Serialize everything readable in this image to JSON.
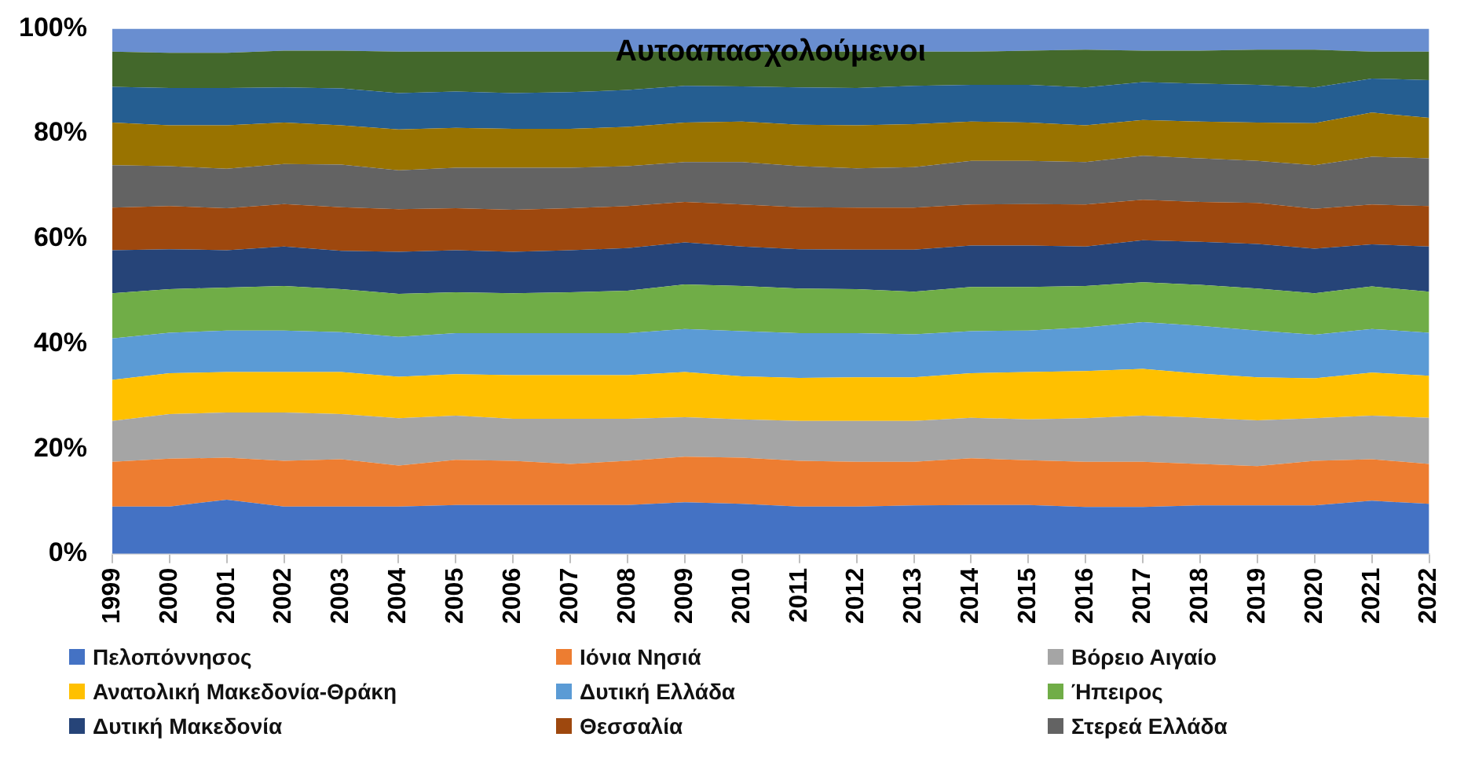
{
  "chart_data": {
    "type": "area",
    "stacked": true,
    "title": "Αυτοαπασχολούμενοι",
    "categories": [
      "1999",
      "2000",
      "2001",
      "2002",
      "2003",
      "2004",
      "2005",
      "2006",
      "2007",
      "2008",
      "2009",
      "2010",
      "2011",
      "2012",
      "2013",
      "2014",
      "2015",
      "2016",
      "2017",
      "2018",
      "2019",
      "2020",
      "2021",
      "2022"
    ],
    "ylim": [
      0,
      100
    ],
    "yticks": [
      {
        "value": 0,
        "label": "0%"
      },
      {
        "value": 20,
        "label": "20%"
      },
      {
        "value": 40,
        "label": "40%"
      },
      {
        "value": 60,
        "label": "60%"
      },
      {
        "value": 80,
        "label": "80%"
      },
      {
        "value": 100,
        "label": "100%"
      }
    ],
    "grid": false,
    "legend": "bottom",
    "series": [
      {
        "name": "Πελοπόννησος",
        "color": "#4472c4",
        "values": [
          9.0,
          9.0,
          10.3,
          9.0,
          9.0,
          9.0,
          9.3,
          9.3,
          9.3,
          9.3,
          9.8,
          9.5,
          9.0,
          9.0,
          9.2,
          9.3,
          9.3,
          8.9,
          8.9,
          9.2,
          9.2,
          9.2,
          10.1,
          9.5
        ]
      },
      {
        "name": "Ιόνια Νησιά",
        "color": "#ed7d31",
        "values": [
          8.5,
          9.1,
          8.0,
          8.7,
          9.0,
          7.8,
          8.6,
          8.4,
          7.8,
          8.4,
          8.7,
          8.8,
          8.7,
          8.5,
          8.3,
          8.9,
          8.5,
          8.6,
          8.6,
          7.9,
          7.5,
          8.5,
          7.9,
          7.6
        ]
      },
      {
        "name": "Βόρειο Αιγαίο",
        "color": "#a5a5a5",
        "values": [
          7.8,
          8.5,
          8.6,
          9.2,
          8.6,
          9.0,
          8.4,
          8.0,
          8.6,
          8.0,
          7.5,
          7.3,
          7.6,
          7.8,
          7.8,
          7.7,
          7.8,
          8.3,
          8.8,
          8.8,
          8.7,
          8.1,
          8.3,
          8.8
        ]
      },
      {
        "name": "Ανατολική Μακεδονία-Θράκη",
        "color": "#ffc000",
        "values": [
          7.8,
          7.8,
          7.7,
          7.7,
          8.0,
          7.9,
          7.9,
          8.3,
          8.3,
          8.3,
          8.6,
          8.2,
          8.2,
          8.3,
          8.3,
          8.5,
          9.0,
          9.0,
          8.9,
          8.4,
          8.2,
          7.6,
          8.2,
          8.0
        ]
      },
      {
        "name": "Δυτική Ελλάδα",
        "color": "#5b9bd5",
        "values": [
          7.9,
          7.7,
          7.9,
          7.9,
          7.6,
          7.6,
          7.8,
          8.0,
          8.0,
          8.0,
          8.2,
          8.6,
          8.5,
          8.4,
          8.2,
          8.0,
          7.9,
          8.3,
          8.9,
          9.1,
          8.9,
          8.3,
          8.3,
          8.2
        ]
      },
      {
        "name": "Ήπειρος",
        "color": "#70ad47",
        "values": [
          8.6,
          8.3,
          8.2,
          8.5,
          8.2,
          8.2,
          7.8,
          7.6,
          7.8,
          8.1,
          8.5,
          8.6,
          8.5,
          8.4,
          8.1,
          8.4,
          8.3,
          7.9,
          7.6,
          7.8,
          8.0,
          7.9,
          8.1,
          7.8
        ]
      },
      {
        "name": "Δυτική Μακεδονία",
        "color": "#264478",
        "values": [
          8.2,
          7.6,
          7.1,
          7.5,
          7.3,
          8.0,
          8.0,
          7.9,
          8.0,
          8.1,
          8.0,
          7.5,
          7.5,
          7.5,
          8.0,
          7.9,
          7.9,
          7.5,
          8.0,
          8.2,
          8.5,
          8.5,
          8.0,
          8.6
        ]
      },
      {
        "name": "Θεσσαλία",
        "color": "#9e480e",
        "values": [
          8.1,
          8.2,
          8.0,
          8.1,
          8.3,
          8.1,
          8.0,
          8.0,
          8.0,
          8.0,
          7.7,
          8.0,
          8.0,
          8.0,
          8.0,
          7.8,
          7.9,
          8.0,
          7.7,
          7.6,
          7.8,
          7.6,
          7.6,
          7.7
        ]
      },
      {
        "name": "Στερεά Ελλάδα",
        "color": "#636363",
        "values": [
          8.1,
          7.6,
          7.5,
          7.6,
          8.1,
          7.4,
          7.7,
          8.0,
          7.7,
          7.6,
          7.6,
          8.1,
          7.8,
          7.5,
          7.7,
          8.3,
          8.2,
          8.1,
          8.4,
          8.3,
          8.0,
          8.3,
          9.1,
          9.1
        ]
      },
      {
        "color": "#997300",
        "values": [
          8.1,
          7.8,
          8.3,
          7.9,
          7.5,
          7.8,
          7.6,
          7.4,
          7.4,
          7.5,
          7.5,
          7.7,
          7.9,
          8.2,
          8.2,
          7.5,
          7.3,
          7.0,
          6.8,
          7.0,
          7.3,
          8.0,
          8.4,
          7.7
        ]
      },
      {
        "color": "#255e91",
        "values": [
          6.8,
          7.1,
          7.1,
          6.7,
          7.0,
          6.9,
          6.9,
          6.8,
          7.0,
          7.0,
          7.0,
          6.7,
          7.1,
          7.1,
          7.3,
          7.0,
          7.2,
          7.2,
          7.2,
          7.2,
          7.2,
          6.8,
          6.5,
          7.2
        ]
      },
      {
        "color": "#43682b",
        "values": [
          6.7,
          6.7,
          6.7,
          7.0,
          7.2,
          7.9,
          7.6,
          7.9,
          7.7,
          7.3,
          6.5,
          6.6,
          6.8,
          6.9,
          6.5,
          6.3,
          6.5,
          7.2,
          6.0,
          6.3,
          6.7,
          7.2,
          5.1,
          5.4
        ]
      },
      {
        "color": "#698ed0",
        "values": [
          4.4,
          4.6,
          4.6,
          4.2,
          4.2,
          4.4,
          4.4,
          4.4,
          4.4,
          4.4,
          4.4,
          4.4,
          4.4,
          4.4,
          4.4,
          4.4,
          4.2,
          4.0,
          4.2,
          4.2,
          4.0,
          4.0,
          4.4,
          4.4
        ]
      }
    ]
  }
}
